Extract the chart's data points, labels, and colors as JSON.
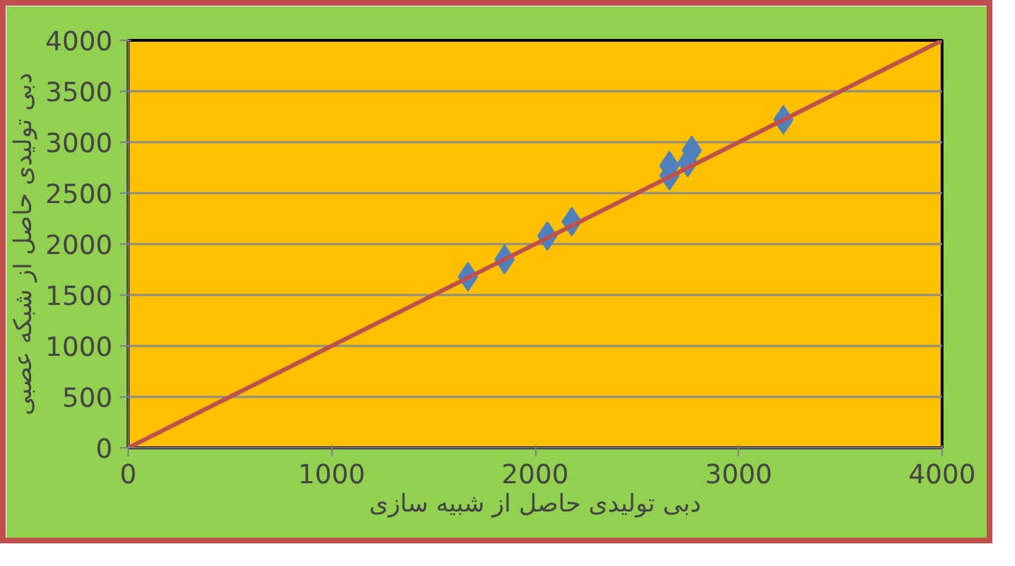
{
  "chart_data": {
    "type": "scatter",
    "xlabel": "دبی تولیدی حاصل از شبیه سازی",
    "ylabel": "دبی تولیدی حاصل از شبکه عصبی",
    "xlim": [
      0,
      4000
    ],
    "ylim": [
      0,
      4000
    ],
    "xticks": [
      0,
      1000,
      2000,
      3000,
      4000
    ],
    "yticks": [
      0,
      500,
      1000,
      1500,
      2000,
      2500,
      3000,
      3500,
      4000
    ],
    "grid": "y",
    "series": [
      {
        "color": "#4f81bd",
        "marker": "diamond",
        "x": [
          1670,
          1850,
          2060,
          2180,
          2660,
          2660,
          2770,
          2750,
          3220
        ],
        "values": [
          1680,
          1850,
          2080,
          2220,
          2670,
          2770,
          2920,
          2800,
          3220
        ]
      },
      {
        "type": "line",
        "color": "#c0504d",
        "marker": "none",
        "line_style": "solid",
        "x": [
          0,
          4000
        ],
        "values": [
          0,
          4000
        ]
      }
    ]
  }
}
